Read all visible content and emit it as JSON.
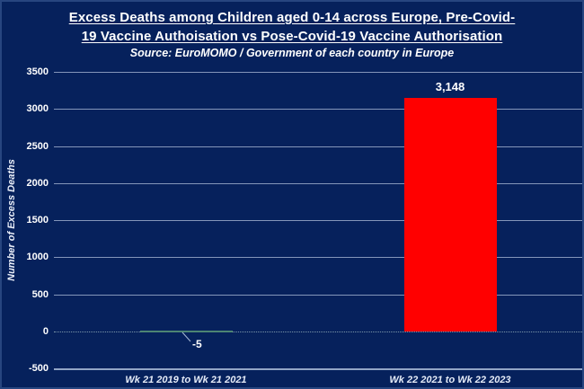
{
  "header": {
    "title_line1": "Excess Deaths among Children aged 0-14 across Europe, Pre-Covid-",
    "title_line2": "19 Vaccine Authoisation vs Pose-Covid-19 Vaccine Authorisation",
    "subtitle": "Source: EuroMOMO / Government of each country in Europe"
  },
  "colors": {
    "background": "#06215C",
    "border": "#27457F",
    "text": "#FFFFFF",
    "gridline": "#8496BA",
    "zero_gridline": "#7E99AB",
    "bottom_gridline": "#92A5C6",
    "bar_pre_covid": "#4D8573",
    "bar_post_covid": "#FF0000",
    "leader_line": "#A9BAD6"
  },
  "chart_data": {
    "type": "bar",
    "title": "Excess Deaths among Children aged 0-14 across Europe, Pre-Covid-19 Vaccine Authoisation vs Pose-Covid-19 Vaccine Authorisation",
    "subtitle": "Source: EuroMOMO / Government of each country in Europe",
    "categories": [
      "Wk 21 2019 to Wk 21 2021",
      "Wk 22 2021 to Wk 22 2023"
    ],
    "values": [
      -5,
      3148
    ],
    "data_labels": [
      "-5",
      "3,148"
    ],
    "bar_colors": [
      "#4D8573",
      "#FF0000"
    ],
    "xlabel": "",
    "ylabel": "Number of Excess Deaths",
    "ylim": [
      -500,
      3500
    ],
    "ytick_step": 500,
    "yticks": [
      3500,
      3000,
      2500,
      2000,
      1500,
      1000,
      500,
      0,
      -500
    ],
    "grid": true,
    "legend": false
  }
}
